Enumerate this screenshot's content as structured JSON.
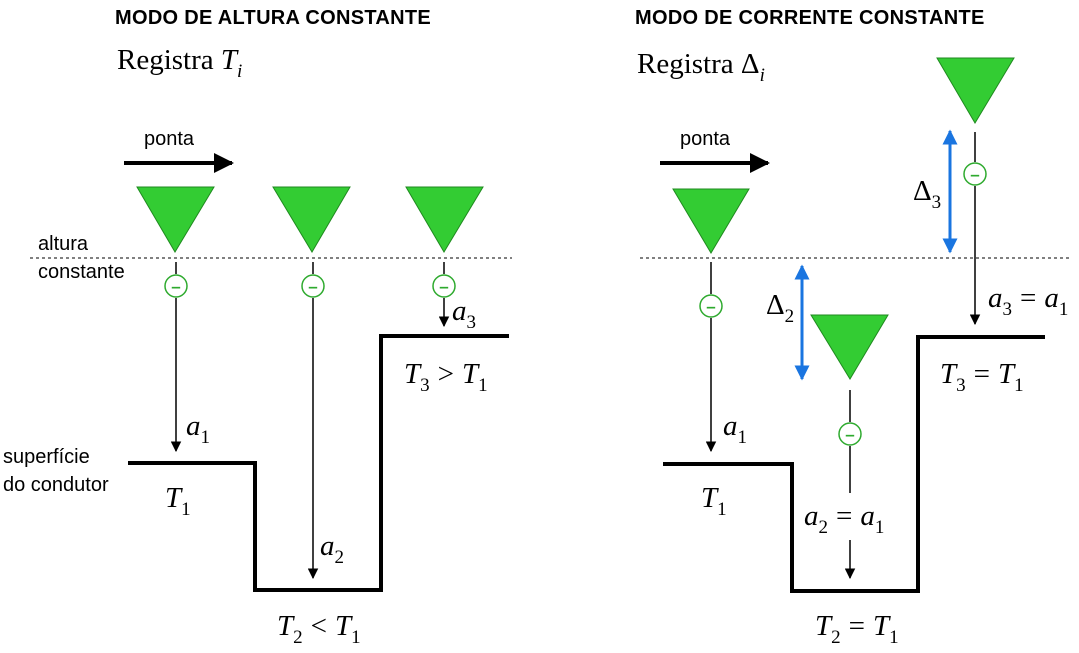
{
  "left": {
    "title": "MODO DE ALTURA CONSTANTE",
    "register_word": "Registra",
    "register_symbol": "T",
    "register_sub": "i",
    "tip_label": "ponta",
    "height_label_1": "altura",
    "height_label_2": "constante",
    "surface_label_1": "superfície",
    "surface_label_2": "do condutor",
    "a1": {
      "sym": "a",
      "sub": "1"
    },
    "a2": {
      "sym": "a",
      "sub": "2"
    },
    "a3": {
      "sym": "a",
      "sub": "3"
    },
    "t1": {
      "sym": "T",
      "sub": "1"
    },
    "t2": {
      "lhs": "T",
      "lhs_sub": "2",
      "op": "<",
      "rhs": "T",
      "rhs_sub": "1"
    },
    "t3": {
      "lhs": "T",
      "lhs_sub": "3",
      "op": ">",
      "rhs": "T",
      "rhs_sub": "1"
    }
  },
  "right": {
    "title": "MODO DE CORRENTE CONSTANTE",
    "register_word": "Registra",
    "register_symbol": "Δ",
    "register_sub": "i",
    "tip_label": "ponta",
    "a1": {
      "sym": "a",
      "sub": "1"
    },
    "a2": {
      "lhs": "a",
      "lhs_sub": "2",
      "op": "=",
      "rhs": "a",
      "rhs_sub": "1"
    },
    "a3": {
      "lhs": "a",
      "lhs_sub": "3",
      "op": "=",
      "rhs": "a",
      "rhs_sub": "1"
    },
    "delta2": {
      "sym": "Δ",
      "sub": "2"
    },
    "delta3": {
      "sym": "Δ",
      "sub": "3"
    },
    "t1": {
      "sym": "T",
      "sub": "1"
    },
    "t2": {
      "lhs": "T",
      "lhs_sub": "2",
      "op": "=",
      "rhs": "T",
      "rhs_sub": "1"
    },
    "t3": {
      "lhs": "T",
      "lhs_sub": "3",
      "op": "=",
      "rhs": "T",
      "rhs_sub": "1"
    }
  },
  "electron_symbol": "–",
  "colors": {
    "tip_fill": "#33cc33",
    "tip_stroke": "#1f8a1f",
    "electron": "#2eaa2e",
    "delta_arrow": "#1a75e0",
    "line": "#000000"
  }
}
